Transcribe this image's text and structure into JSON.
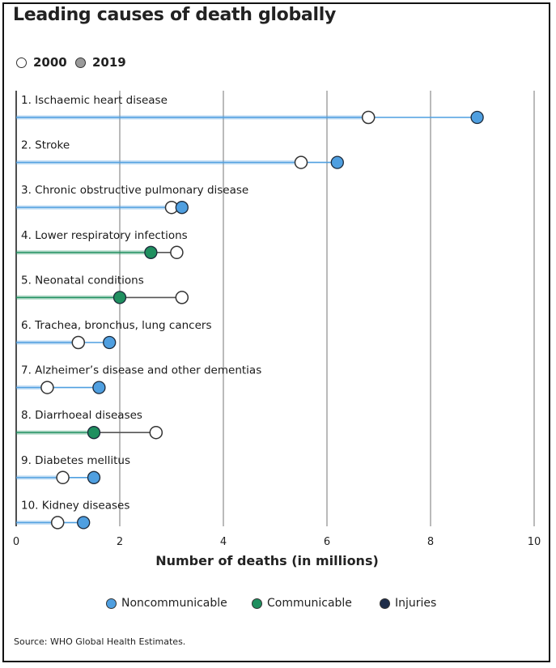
{
  "title": "Leading causes of death globally",
  "year_key": [
    {
      "label": "2000",
      "fill": "#ffffff"
    },
    {
      "label": "2019",
      "fill": "#9a9a9a"
    }
  ],
  "colors": {
    "noncommunicable": "#4f9fe0",
    "communicable": "#1f8f5f",
    "injuries": "#1e2d4a",
    "empty_marker": "#ffffff",
    "gridline": "#8c8c8c"
  },
  "legend": [
    {
      "label": "Noncommunicable",
      "color": "#4f9fe0"
    },
    {
      "label": "Communicable",
      "color": "#1f8f5f"
    },
    {
      "label": "Injuries",
      "color": "#1e2d4a"
    }
  ],
  "source": "Source: WHO Global Health Estimates.",
  "chart_data": {
    "type": "dumbbell",
    "xlabel": "Number of deaths (in millions)",
    "xlim": [
      0,
      10
    ],
    "xticks": [
      "0",
      "2",
      "4",
      "6",
      "8",
      "10"
    ],
    "grid": true,
    "legend_position": "bottom",
    "categories": [
      "1. Ischaemic heart disease",
      "2. Stroke",
      "3. Chronic obstructive pulmonary disease",
      "4. Lower respiratory infections",
      "5. Neonatal conditions",
      "6. Trachea, bronchus, lung cancers",
      "7. Alzheimer’s disease and other dementias",
      "8. Diarrhoeal diseases",
      "9. Diabetes mellitus",
      "10. Kidney diseases"
    ],
    "group": [
      "Noncommunicable",
      "Noncommunicable",
      "Noncommunicable",
      "Communicable",
      "Communicable",
      "Noncommunicable",
      "Noncommunicable",
      "Communicable",
      "Noncommunicable",
      "Noncommunicable"
    ],
    "series": [
      {
        "name": "2000",
        "values": [
          6.8,
          5.5,
          3.0,
          3.1,
          3.2,
          1.2,
          0.6,
          2.7,
          0.9,
          0.8
        ]
      },
      {
        "name": "2019",
        "values": [
          8.9,
          6.2,
          3.2,
          2.6,
          2.0,
          1.8,
          1.6,
          1.5,
          1.5,
          1.3
        ]
      }
    ]
  }
}
